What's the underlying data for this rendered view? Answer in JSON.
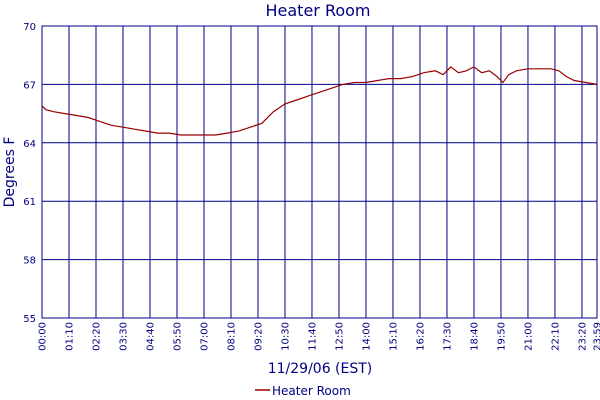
{
  "chart_data": {
    "type": "line",
    "title": "Heater Room",
    "xlabel": "11/29/06 (EST)",
    "ylabel": "Degrees F",
    "ylim": [
      55,
      70
    ],
    "yticks": [
      55,
      58,
      61,
      64,
      67,
      70
    ],
    "xlim": [
      "00:00",
      "23:59"
    ],
    "xticks": [
      "00:00",
      "01:10",
      "02:20",
      "03:30",
      "04:40",
      "05:50",
      "07:00",
      "08:10",
      "09:20",
      "10:30",
      "11:40",
      "12:50",
      "14:00",
      "15:10",
      "16:20",
      "17:30",
      "18:40",
      "19:50",
      "21:00",
      "22:10",
      "23:20",
      "23:59"
    ],
    "grid": true,
    "legend_position": "bottom-center",
    "series": [
      {
        "name": "Heater Room",
        "color": "#990000",
        "points": [
          [
            "00:00",
            65.9
          ],
          [
            "00:10",
            65.7
          ],
          [
            "00:30",
            65.6
          ],
          [
            "01:00",
            65.5
          ],
          [
            "01:30",
            65.4
          ],
          [
            "02:00",
            65.3
          ],
          [
            "02:30",
            65.1
          ],
          [
            "03:00",
            64.9
          ],
          [
            "03:30",
            64.8
          ],
          [
            "04:00",
            64.7
          ],
          [
            "04:30",
            64.6
          ],
          [
            "05:00",
            64.5
          ],
          [
            "05:30",
            64.5
          ],
          [
            "06:00",
            64.4
          ],
          [
            "06:30",
            64.4
          ],
          [
            "07:00",
            64.4
          ],
          [
            "07:30",
            64.4
          ],
          [
            "08:00",
            64.5
          ],
          [
            "08:30",
            64.6
          ],
          [
            "09:00",
            64.8
          ],
          [
            "09:30",
            65.0
          ],
          [
            "10:00",
            65.6
          ],
          [
            "10:30",
            66.0
          ],
          [
            "11:00",
            66.2
          ],
          [
            "11:30",
            66.4
          ],
          [
            "12:00",
            66.6
          ],
          [
            "12:30",
            66.8
          ],
          [
            "13:00",
            67.0
          ],
          [
            "13:30",
            67.1
          ],
          [
            "14:00",
            67.1
          ],
          [
            "14:30",
            67.2
          ],
          [
            "15:00",
            67.3
          ],
          [
            "15:30",
            67.3
          ],
          [
            "16:00",
            67.4
          ],
          [
            "16:30",
            67.6
          ],
          [
            "17:00",
            67.7
          ],
          [
            "17:20",
            67.5
          ],
          [
            "17:40",
            67.9
          ],
          [
            "18:00",
            67.6
          ],
          [
            "18:20",
            67.7
          ],
          [
            "18:40",
            67.9
          ],
          [
            "19:00",
            67.6
          ],
          [
            "19:20",
            67.7
          ],
          [
            "19:40",
            67.4
          ],
          [
            "19:55",
            67.1
          ],
          [
            "20:10",
            67.5
          ],
          [
            "20:30",
            67.7
          ],
          [
            "21:00",
            67.8
          ],
          [
            "21:30",
            67.8
          ],
          [
            "22:00",
            67.8
          ],
          [
            "22:20",
            67.7
          ],
          [
            "22:40",
            67.4
          ],
          [
            "23:00",
            67.2
          ],
          [
            "23:30",
            67.1
          ],
          [
            "23:59",
            67.0
          ]
        ]
      }
    ]
  }
}
